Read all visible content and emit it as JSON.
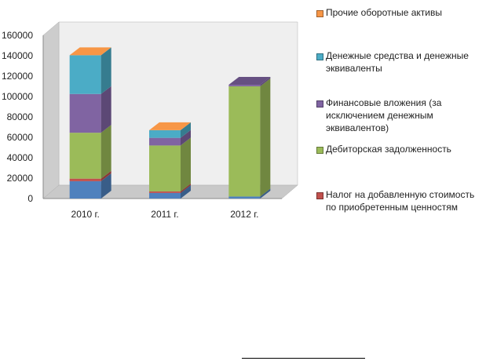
{
  "chart_data": {
    "type": "bar",
    "stacked": true,
    "three_d": true,
    "categories": [
      "2010 г.",
      "2011 г.",
      "2012 г."
    ],
    "ylim": [
      0,
      160000
    ],
    "y_ticks": [
      "0",
      "20000",
      "40000",
      "60000",
      "80000",
      "100000",
      "120000",
      "140000",
      "160000"
    ],
    "grid": false,
    "legend_position": "right",
    "series": [
      {
        "name": "Налог на добавленную стоимость по приобретенным ценностям",
        "color": "#c0504d",
        "values": [
          2500,
          1500,
          0
        ]
      },
      {
        "name": "Дебиторская задолженность",
        "color": "#9bbb59",
        "values": [
          45000,
          45000,
          108000
        ]
      },
      {
        "name": "Финансовые вложения (за исключением денежным эквивалентов)",
        "color": "#8064a2",
        "values": [
          38000,
          7500,
          1500
        ]
      },
      {
        "name": "Денежные средства и денежные эквиваленты",
        "color": "#4bacc6",
        "values": [
          38000,
          7500,
          0
        ]
      },
      {
        "name": "Прочие оборотные активы",
        "color": "#f79646",
        "values": [
          0,
          0,
          0
        ]
      }
    ],
    "base_values": [
      17000,
      5500,
      2000
    ],
    "base_color": "#4f81bd"
  }
}
